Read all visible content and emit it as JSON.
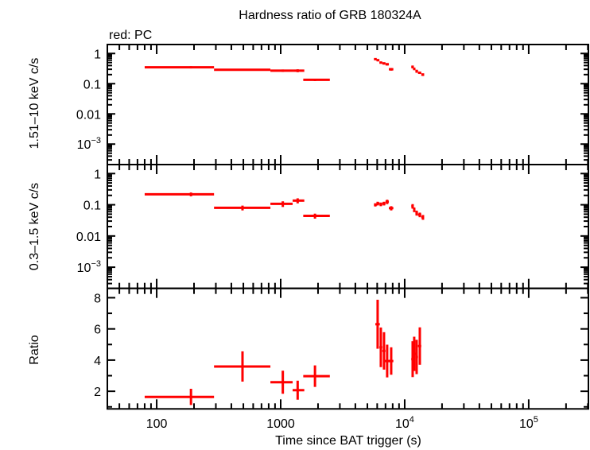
{
  "chart_data": {
    "type": "scatter",
    "title": "Hardness ratio of GRB 180324A",
    "legend_note": "red: PC",
    "xlabel": "Time since BAT trigger (s)",
    "xscale": "log",
    "xlim": [
      40,
      303000
    ],
    "xticks": [
      {
        "v": 100,
        "label": "100"
      },
      {
        "v": 1000,
        "label": "1000"
      },
      {
        "v": 10000,
        "label": "10",
        "sup": "4"
      },
      {
        "v": 100000,
        "label": "10",
        "sup": "5"
      }
    ],
    "color": "#ff0000",
    "panels": [
      {
        "ylabel": "1.51–10 keV c/s",
        "yscale": "log",
        "ylim": [
          0.00021,
          1.98
        ],
        "yticks": [
          {
            "v": 1,
            "label": "1"
          },
          {
            "v": 0.1,
            "label": "0.1"
          },
          {
            "v": 0.01,
            "label": "0.01"
          },
          {
            "v": 0.001,
            "label": "10",
            "sup": "−3"
          }
        ],
        "points": [
          {
            "t": 189,
            "tlo": 80,
            "thi": 290,
            "y": 0.35,
            "err": 0.03
          },
          {
            "t": 492,
            "tlo": 290,
            "thi": 826,
            "y": 0.29,
            "err": 0.02
          },
          {
            "t": 1040,
            "tlo": 826,
            "thi": 1248,
            "y": 0.27,
            "err": 0.025
          },
          {
            "t": 1370,
            "tlo": 1248,
            "thi": 1550,
            "y": 0.27,
            "err": 0.03
          },
          {
            "t": 1890,
            "tlo": 1520,
            "thi": 2490,
            "y": 0.134,
            "err": 0.012
          },
          {
            "t": 5794,
            "tlo": 5650,
            "thi": 5950,
            "y": 0.65,
            "err": 0.05
          },
          {
            "t": 6050,
            "tlo": 5950,
            "thi": 6250,
            "y": 0.6,
            "err": 0.05
          },
          {
            "t": 6420,
            "tlo": 6250,
            "thi": 6600,
            "y": 0.5,
            "err": 0.04
          },
          {
            "t": 6810,
            "tlo": 6600,
            "thi": 7000,
            "y": 0.47,
            "err": 0.04
          },
          {
            "t": 7220,
            "tlo": 7000,
            "thi": 7450,
            "y": 0.44,
            "err": 0.04
          },
          {
            "t": 7780,
            "tlo": 7450,
            "thi": 8100,
            "y": 0.3,
            "err": 0.03
          },
          {
            "t": 11590,
            "tlo": 11300,
            "thi": 11800,
            "y": 0.36,
            "err": 0.04
          },
          {
            "t": 11930,
            "tlo": 11800,
            "thi": 12200,
            "y": 0.31,
            "err": 0.03
          },
          {
            "t": 12480,
            "tlo": 12200,
            "thi": 12800,
            "y": 0.26,
            "err": 0.03
          },
          {
            "t": 13240,
            "tlo": 12800,
            "thi": 13600,
            "y": 0.23,
            "err": 0.02
          },
          {
            "t": 14040,
            "tlo": 13600,
            "thi": 14300,
            "y": 0.2,
            "err": 0.02
          }
        ]
      },
      {
        "ylabel": "0.3–1.5 keV c/s",
        "yscale": "log",
        "ylim": [
          0.00021,
          1.94
        ],
        "yticks": [
          {
            "v": 1,
            "label": "1"
          },
          {
            "v": 0.1,
            "label": "0.1"
          },
          {
            "v": 0.01,
            "label": "0.01"
          },
          {
            "v": 0.001,
            "label": "10",
            "sup": "−3"
          }
        ],
        "points": [
          {
            "t": 189,
            "tlo": 80,
            "thi": 290,
            "y": 0.217,
            "err": 0.03
          },
          {
            "t": 492,
            "tlo": 290,
            "thi": 826,
            "y": 0.08,
            "err": 0.014
          },
          {
            "t": 1040,
            "tlo": 826,
            "thi": 1248,
            "y": 0.107,
            "err": 0.022
          },
          {
            "t": 1370,
            "tlo": 1248,
            "thi": 1550,
            "y": 0.136,
            "err": 0.025
          },
          {
            "t": 1890,
            "tlo": 1520,
            "thi": 2490,
            "y": 0.044,
            "err": 0.008
          },
          {
            "t": 5794,
            "tlo": 5650,
            "thi": 5950,
            "y": 0.1,
            "err": 0.012
          },
          {
            "t": 6050,
            "tlo": 5950,
            "thi": 6250,
            "y": 0.11,
            "err": 0.015
          },
          {
            "t": 6420,
            "tlo": 6250,
            "thi": 6600,
            "y": 0.104,
            "err": 0.014
          },
          {
            "t": 6810,
            "tlo": 6600,
            "thi": 7000,
            "y": 0.11,
            "err": 0.015
          },
          {
            "t": 7220,
            "tlo": 7000,
            "thi": 7450,
            "y": 0.125,
            "err": 0.02
          },
          {
            "t": 7780,
            "tlo": 7450,
            "thi": 8100,
            "y": 0.078,
            "err": 0.012
          },
          {
            "t": 11590,
            "tlo": 11300,
            "thi": 11800,
            "y": 0.09,
            "err": 0.015
          },
          {
            "t": 11930,
            "tlo": 11800,
            "thi": 12200,
            "y": 0.07,
            "err": 0.012
          },
          {
            "t": 12480,
            "tlo": 12200,
            "thi": 12800,
            "y": 0.055,
            "err": 0.01
          },
          {
            "t": 13240,
            "tlo": 12800,
            "thi": 13600,
            "y": 0.048,
            "err": 0.008
          },
          {
            "t": 14040,
            "tlo": 13600,
            "thi": 14300,
            "y": 0.04,
            "err": 0.007
          }
        ]
      },
      {
        "ylabel": "Ratio",
        "yscale": "linear",
        "ylim": [
          0.87,
          8.6
        ],
        "yticks": [
          {
            "v": 2,
            "label": "2"
          },
          {
            "v": 4,
            "label": "4"
          },
          {
            "v": 6,
            "label": "6"
          },
          {
            "v": 8,
            "label": "8"
          }
        ],
        "points": [
          {
            "t": 189,
            "tlo": 80,
            "thi": 290,
            "y": 1.64,
            "err": 0.52
          },
          {
            "t": 492,
            "tlo": 290,
            "thi": 826,
            "y": 3.59,
            "err": 0.97
          },
          {
            "t": 1040,
            "tlo": 826,
            "thi": 1248,
            "y": 2.58,
            "err": 0.74
          },
          {
            "t": 1370,
            "tlo": 1248,
            "thi": 1550,
            "y": 2.07,
            "err": 0.61
          },
          {
            "t": 1890,
            "tlo": 1520,
            "thi": 2490,
            "y": 2.97,
            "err": 0.69
          },
          {
            "t": 6050,
            "tlo": 5800,
            "thi": 6300,
            "y": 6.3,
            "err": 1.57
          },
          {
            "t": 6420,
            "tlo": 6250,
            "thi": 6600,
            "y": 4.82,
            "err": 1.27
          },
          {
            "t": 6810,
            "tlo": 6600,
            "thi": 7000,
            "y": 4.59,
            "err": 1.2
          },
          {
            "t": 7220,
            "tlo": 6810,
            "thi": 7850,
            "y": 3.94,
            "err": 1.05
          },
          {
            "t": 7780,
            "tlo": 7450,
            "thi": 8100,
            "y": 3.94,
            "err": 0.88
          },
          {
            "t": 11590,
            "tlo": 11300,
            "thi": 11800,
            "y": 4.06,
            "err": 1.15
          },
          {
            "t": 11930,
            "tlo": 11800,
            "thi": 12200,
            "y": 4.4,
            "err": 1.1
          },
          {
            "t": 12480,
            "tlo": 12200,
            "thi": 12800,
            "y": 4.2,
            "err": 1.1
          },
          {
            "t": 13240,
            "tlo": 12800,
            "thi": 13600,
            "y": 4.9,
            "err": 1.2
          }
        ]
      }
    ]
  }
}
